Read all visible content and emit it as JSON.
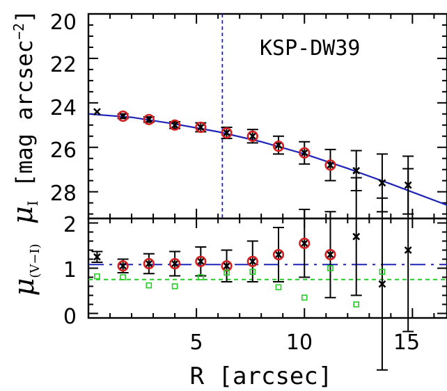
{
  "chart_data": [
    {
      "type": "scatter",
      "annotation": "KSP-DW39",
      "ylabel_symbol": "μ",
      "ylabel_sub": "I",
      "ylabel_unit": "[mag arcsec",
      "ylabel_exp": "−2",
      "ylabel_close": "]",
      "xlim": [
        0,
        16.6
      ],
      "ylim": [
        29.2,
        20
      ],
      "y_inverted": true,
      "yticks": [
        "20",
        "22",
        "24",
        "26",
        "28"
      ],
      "vline_x": 6.2,
      "series": [
        {
          "marker": "cross",
          "color": "#000000",
          "points": [
            {
              "x": 0.4,
              "y": 24.4,
              "err": 0
            },
            {
              "x": 1.6,
              "y": 24.6,
              "err": 0.1
            },
            {
              "x": 2.8,
              "y": 24.75,
              "err": 0.12
            },
            {
              "x": 4.0,
              "y": 25.0,
              "err": 0.15
            },
            {
              "x": 5.2,
              "y": 25.1,
              "err": 0.2
            },
            {
              "x": 6.4,
              "y": 25.35,
              "err": 0.25
            },
            {
              "x": 7.6,
              "y": 25.5,
              "err": 0.3
            },
            {
              "x": 8.8,
              "y": 25.9,
              "err": 0.4
            },
            {
              "x": 10.0,
              "y": 26.25,
              "err": 0.5
            },
            {
              "x": 11.2,
              "y": 26.8,
              "err": 0.7
            },
            {
              "x": 12.4,
              "y": 27.05,
              "err": 0.9
            },
            {
              "x": 13.6,
              "y": 27.6,
              "err": 1.3
            },
            {
              "x": 14.8,
              "y": 27.7,
              "err": 1.3
            }
          ]
        },
        {
          "marker": "circle",
          "color": "#d42020",
          "points": [
            {
              "x": 1.6,
              "y": 24.6
            },
            {
              "x": 2.8,
              "y": 24.75
            },
            {
              "x": 4.0,
              "y": 25.0
            },
            {
              "x": 5.2,
              "y": 25.1
            },
            {
              "x": 6.4,
              "y": 25.35
            },
            {
              "x": 7.6,
              "y": 25.5
            },
            {
              "x": 8.8,
              "y": 25.95
            },
            {
              "x": 10.0,
              "y": 26.25
            },
            {
              "x": 11.2,
              "y": 26.8
            }
          ]
        },
        {
          "marker": "line",
          "color": "#1f24b8",
          "points": [
            {
              "x": 0,
              "y": 24.5
            },
            {
              "x": 2,
              "y": 24.65
            },
            {
              "x": 4,
              "y": 24.95
            },
            {
              "x": 6,
              "y": 25.3
            },
            {
              "x": 8,
              "y": 25.75
            },
            {
              "x": 10,
              "y": 26.3
            },
            {
              "x": 12,
              "y": 26.95
            },
            {
              "x": 14,
              "y": 27.65
            },
            {
              "x": 16.6,
              "y": 28.6
            }
          ]
        }
      ]
    },
    {
      "type": "scatter",
      "ylabel_symbol": "μ",
      "ylabel_sub": "(V−I)",
      "xlabel": "R [arcsec]",
      "xlim": [
        0,
        16.6
      ],
      "ylim": [
        -0.1,
        2.1
      ],
      "xticks": [
        "5",
        "10",
        "15"
      ],
      "yticks": [
        "0",
        "1",
        "2"
      ],
      "hlines": [
        {
          "y": 1.08,
          "color": "#1f24b8",
          "style": "longdash"
        },
        {
          "y": 0.75,
          "color": "#22cc22",
          "style": "dash"
        }
      ],
      "series": [
        {
          "marker": "cross",
          "color": "#000000",
          "points": [
            {
              "x": 0.4,
              "y": 1.25,
              "err": 0.12
            },
            {
              "x": 1.6,
              "y": 1.05,
              "err": 0.15
            },
            {
              "x": 2.8,
              "y": 1.1,
              "err": 0.22
            },
            {
              "x": 4.0,
              "y": 1.1,
              "err": 0.27
            },
            {
              "x": 5.2,
              "y": 1.15,
              "err": 0.32
            },
            {
              "x": 6.4,
              "y": 1.05,
              "err": 0.35
            },
            {
              "x": 7.6,
              "y": 1.15,
              "err": 0.45
            },
            {
              "x": 8.8,
              "y": 1.3,
              "err": 0.6
            },
            {
              "x": 10.0,
              "y": 1.55,
              "err": 0.75
            },
            {
              "x": 11.2,
              "y": 1.3,
              "err": 0.95
            },
            {
              "x": 12.4,
              "y": 1.7,
              "err": 1.3
            },
            {
              "x": 13.6,
              "y": 0.65,
              "err": 1.9
            },
            {
              "x": 14.8,
              "y": 1.4,
              "err": 1.8
            }
          ]
        },
        {
          "marker": "circle",
          "color": "#d42020",
          "points": [
            {
              "x": 1.6,
              "y": 1.05
            },
            {
              "x": 2.8,
              "y": 1.1
            },
            {
              "x": 4.0,
              "y": 1.1
            },
            {
              "x": 5.2,
              "y": 1.15
            },
            {
              "x": 6.4,
              "y": 1.05
            },
            {
              "x": 7.6,
              "y": 1.15
            },
            {
              "x": 8.8,
              "y": 1.3
            },
            {
              "x": 10.0,
              "y": 1.55
            },
            {
              "x": 11.2,
              "y": 1.3
            }
          ]
        },
        {
          "marker": "square",
          "color": "#22cc22",
          "points": [
            {
              "x": 0.4,
              "y": 0.82
            },
            {
              "x": 1.6,
              "y": 0.8
            },
            {
              "x": 2.8,
              "y": 0.62
            },
            {
              "x": 4.0,
              "y": 0.6
            },
            {
              "x": 5.2,
              "y": 0.8
            },
            {
              "x": 6.4,
              "y": 0.9
            },
            {
              "x": 7.6,
              "y": 0.92
            },
            {
              "x": 8.8,
              "y": 0.58
            },
            {
              "x": 10.0,
              "y": 0.35
            },
            {
              "x": 11.2,
              "y": 1.0
            },
            {
              "x": 12.4,
              "y": 0.2
            },
            {
              "x": 13.6,
              "y": 0.92
            }
          ]
        }
      ]
    }
  ]
}
